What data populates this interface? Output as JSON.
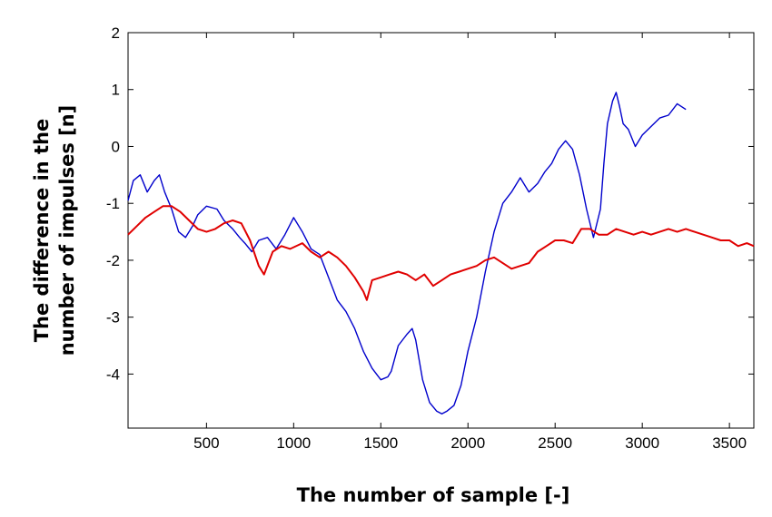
{
  "chart_data": {
    "type": "line",
    "title": "",
    "xlabel": "The number of sample [-]",
    "ylabel_lines": [
      "The difference in the",
      "number of impulses [n]"
    ],
    "xlim": [
      50,
      3640
    ],
    "ylim": [
      -4.95,
      2
    ],
    "x_ticks": [
      500,
      1000,
      1500,
      2000,
      2500,
      3000,
      3500
    ],
    "x_tick_labels": [
      "500",
      "1000",
      "1500",
      "2000",
      "2500",
      "3000",
      "3500"
    ],
    "y_ticks": [
      2,
      1,
      0,
      -1,
      -2,
      -3,
      -4
    ],
    "y_tick_labels": [
      "2",
      "1",
      "0",
      "-1",
      "-2",
      "-3",
      "-4"
    ],
    "grid": false,
    "legend": "none",
    "series": [
      {
        "color": "#0000cc",
        "x": [
          50,
          80,
          120,
          160,
          200,
          230,
          260,
          300,
          340,
          380,
          420,
          450,
          500,
          560,
          600,
          650,
          690,
          720,
          760,
          800,
          850,
          900,
          950,
          1000,
          1050,
          1100,
          1150,
          1200,
          1250,
          1300,
          1350,
          1400,
          1450,
          1500,
          1540,
          1560,
          1600,
          1650,
          1680,
          1700,
          1740,
          1780,
          1820,
          1850,
          1880,
          1920,
          1960,
          2000,
          2050,
          2100,
          2150,
          2200,
          2250,
          2300,
          2350,
          2400,
          2440,
          2480,
          2520,
          2560,
          2600,
          2640,
          2680,
          2720,
          2760,
          2780,
          2800,
          2830,
          2850,
          2870,
          2890,
          2920,
          2960,
          3000,
          3050,
          3100,
          3150,
          3200,
          3250
        ],
        "y": [
          -0.95,
          -0.6,
          -0.5,
          -0.8,
          -0.6,
          -0.5,
          -0.8,
          -1.1,
          -1.5,
          -1.6,
          -1.4,
          -1.2,
          -1.05,
          -1.1,
          -1.3,
          -1.45,
          -1.6,
          -1.7,
          -1.85,
          -1.65,
          -1.6,
          -1.8,
          -1.55,
          -1.25,
          -1.5,
          -1.8,
          -1.9,
          -2.3,
          -2.7,
          -2.9,
          -3.2,
          -3.6,
          -3.9,
          -4.1,
          -4.05,
          -3.95,
          -3.5,
          -3.3,
          -3.2,
          -3.4,
          -4.1,
          -4.5,
          -4.65,
          -4.7,
          -4.65,
          -4.55,
          -4.2,
          -3.6,
          -3.0,
          -2.2,
          -1.5,
          -1.0,
          -0.8,
          -0.55,
          -0.8,
          -0.65,
          -0.45,
          -0.3,
          -0.05,
          0.1,
          -0.05,
          -0.5,
          -1.1,
          -1.6,
          -1.1,
          -0.3,
          0.4,
          0.8,
          0.95,
          0.7,
          0.4,
          0.3,
          0.0,
          0.2,
          0.35,
          0.5,
          0.55,
          0.75,
          0.65
        ]
      },
      {
        "color": "#e00000",
        "x": [
          50,
          100,
          150,
          200,
          250,
          300,
          350,
          400,
          450,
          500,
          550,
          600,
          650,
          700,
          750,
          800,
          830,
          880,
          930,
          980,
          1050,
          1100,
          1150,
          1200,
          1250,
          1300,
          1350,
          1400,
          1420,
          1450,
          1500,
          1550,
          1600,
          1650,
          1700,
          1750,
          1800,
          1850,
          1900,
          1950,
          2000,
          2050,
          2100,
          2150,
          2200,
          2250,
          2300,
          2350,
          2400,
          2450,
          2500,
          2550,
          2600,
          2650,
          2700,
          2750,
          2800,
          2850,
          2900,
          2950,
          3000,
          3050,
          3100,
          3150,
          3200,
          3250,
          3300,
          3350,
          3400,
          3450,
          3500,
          3550,
          3600,
          3640
        ],
        "y": [
          -1.55,
          -1.4,
          -1.25,
          -1.15,
          -1.05,
          -1.05,
          -1.15,
          -1.3,
          -1.45,
          -1.5,
          -1.45,
          -1.35,
          -1.3,
          -1.35,
          -1.65,
          -2.1,
          -2.25,
          -1.85,
          -1.75,
          -1.8,
          -1.7,
          -1.85,
          -1.95,
          -1.85,
          -1.95,
          -2.1,
          -2.3,
          -2.55,
          -2.7,
          -2.35,
          -2.3,
          -2.25,
          -2.2,
          -2.25,
          -2.35,
          -2.25,
          -2.45,
          -2.35,
          -2.25,
          -2.2,
          -2.15,
          -2.1,
          -2.0,
          -1.95,
          -2.05,
          -2.15,
          -2.1,
          -2.05,
          -1.85,
          -1.75,
          -1.65,
          -1.65,
          -1.7,
          -1.45,
          -1.45,
          -1.55,
          -1.55,
          -1.45,
          -1.5,
          -1.55,
          -1.5,
          -1.55,
          -1.5,
          -1.45,
          -1.5,
          -1.45,
          -1.5,
          -1.55,
          -1.6,
          -1.65,
          -1.65,
          -1.75,
          -1.7,
          -1.75
        ]
      }
    ]
  }
}
